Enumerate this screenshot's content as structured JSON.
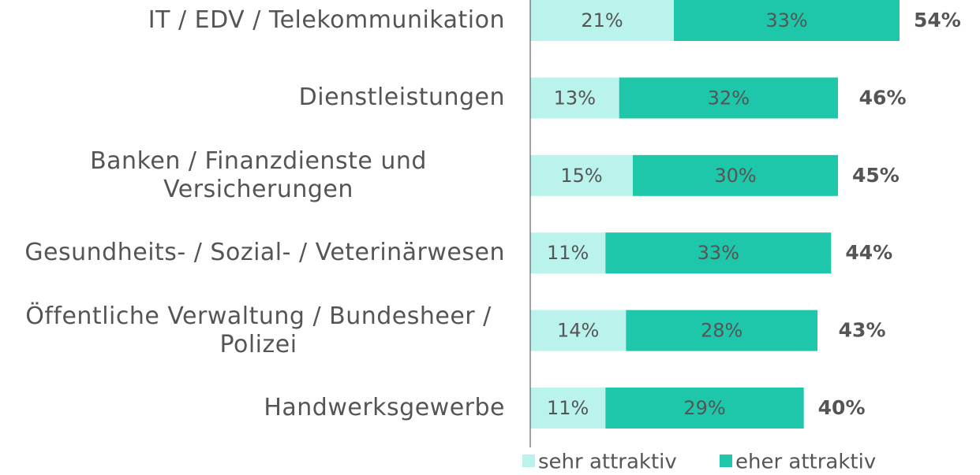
{
  "chart_data": {
    "type": "stacked-bar-horizontal",
    "categories": [
      "IT / EDV / Telekommunikation",
      "Dienstleistungen",
      "Banken / Finanzdienste und Versicherungen",
      "Gesundheits- / Sozial- / Veterinärwesen",
      "Öffentliche Verwaltung / Bundesheer / Polizei",
      "Handwerksgewerbe"
    ],
    "series": [
      {
        "name": "sehr attraktiv",
        "color": "#b9f3eb",
        "values": [
          21,
          13,
          15,
          11,
          14,
          11
        ],
        "value_labels": [
          "21%",
          "13%",
          "15%",
          "11%",
          "14%",
          "11%"
        ]
      },
      {
        "name": "eher attraktiv",
        "color": "#1ec7aa",
        "values": [
          33,
          32,
          30,
          33,
          28,
          29
        ],
        "value_labels": [
          "33%",
          "32%",
          "30%",
          "33%",
          "28%",
          "29%"
        ]
      }
    ],
    "totals": [
      54,
      46,
      45,
      44,
      43,
      40
    ],
    "total_labels": [
      "54%",
      "46%",
      "45%",
      "44%",
      "43%",
      "40%"
    ],
    "xlim": [
      0,
      60
    ]
  }
}
